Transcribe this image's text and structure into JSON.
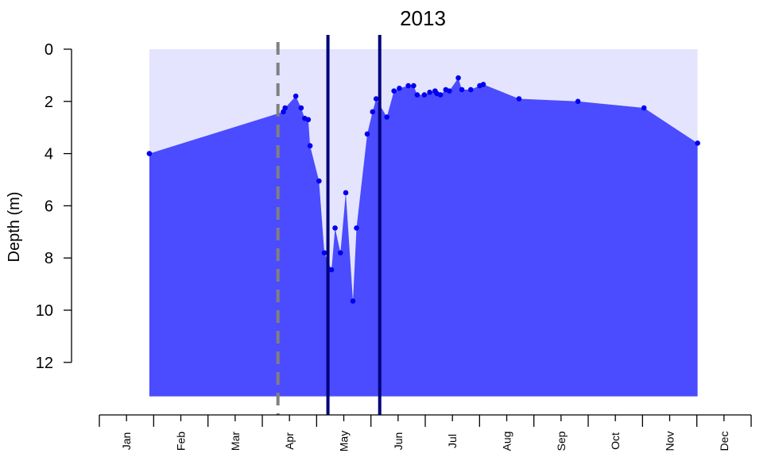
{
  "chart_data": {
    "type": "area",
    "title": "2013",
    "xlabel": "",
    "ylabel": "Depth (m)",
    "y_inverted": true,
    "ylim": [
      0,
      12
    ],
    "yticks": [
      0,
      2,
      4,
      6,
      8,
      10,
      12
    ],
    "months": [
      "Jan",
      "Feb",
      "Mar",
      "Apr",
      "May",
      "Jun",
      "Jul",
      "Aug",
      "Sep",
      "Oct",
      "Nov",
      "Dec"
    ],
    "x_units": "day of year",
    "colors": {
      "area": "#4b4bff",
      "background_band": "#e4e4ff",
      "points": "#0000ee",
      "event_lines": "#00007a",
      "dashed_line": "#808080"
    },
    "max_depth_band": 13.3,
    "dashed_line_doy": 100,
    "event_lines_doy": [
      128,
      157
    ],
    "series": [
      {
        "values": [
          [
            28,
            4.0
          ],
          [
            103,
            2.4
          ],
          [
            104,
            2.25
          ],
          [
            110,
            1.8
          ],
          [
            113,
            2.25
          ],
          [
            115,
            2.65
          ],
          [
            117,
            2.7
          ],
          [
            118,
            3.7
          ],
          [
            123,
            5.05
          ],
          [
            126,
            7.8
          ],
          [
            130,
            8.45
          ],
          [
            132,
            6.85
          ],
          [
            135,
            7.8
          ],
          [
            138,
            5.5
          ],
          [
            142,
            9.65
          ],
          [
            144,
            6.85
          ],
          [
            150,
            3.25
          ],
          [
            153,
            2.4
          ],
          [
            155,
            1.9
          ],
          [
            161,
            2.6
          ],
          [
            165,
            1.6
          ],
          [
            168,
            1.5
          ],
          [
            173,
            1.4
          ],
          [
            176,
            1.4
          ],
          [
            178,
            1.75
          ],
          [
            182,
            1.75
          ],
          [
            185,
            1.65
          ],
          [
            188,
            1.6
          ],
          [
            189,
            1.7
          ],
          [
            191,
            1.75
          ],
          [
            194,
            1.55
          ],
          [
            196,
            1.6
          ],
          [
            201,
            1.1
          ],
          [
            203,
            1.55
          ],
          [
            208,
            1.55
          ],
          [
            213,
            1.4
          ],
          [
            215,
            1.35
          ],
          [
            235,
            1.9
          ],
          [
            268,
            2.0
          ],
          [
            305,
            2.25
          ],
          [
            335,
            3.6
          ]
        ]
      }
    ]
  }
}
